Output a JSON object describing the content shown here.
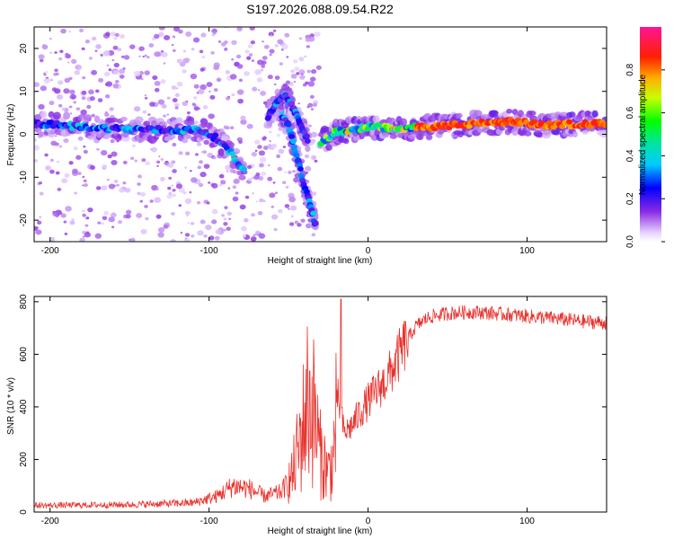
{
  "title": "S197.2026.088.09.54.R22",
  "chart_data": [
    {
      "type": "heatmap",
      "xlabel": "Height of straight line (km)",
      "ylabel": "Frequency (Hz)",
      "xlim": [
        -210,
        150
      ],
      "ylim": [
        -25,
        25
      ],
      "xticks": [
        -200,
        -100,
        0,
        100
      ],
      "yticks": [
        -20,
        -10,
        0,
        10,
        20
      ],
      "xtick_labels": [
        "-200",
        "-100",
        "0",
        "100"
      ],
      "ytick_labels": [
        "-20",
        "-10",
        "0",
        "10",
        "20"
      ],
      "colorbar": {
        "label": "Normalized spectral amplitude",
        "range": [
          0,
          1
        ],
        "ticks": [
          0.0,
          0.2,
          0.4,
          0.6,
          0.8
        ],
        "tick_labels": [
          "0.0",
          "0.2",
          "0.4",
          "0.6",
          "0.8"
        ]
      },
      "ridges": [
        {
          "name": "main band (left)",
          "points": [
            [
              -210,
              2.5
            ],
            [
              -170,
              1.5
            ],
            [
              -130,
              1.0
            ],
            [
              -105,
              1.0
            ],
            [
              -95,
              -1.0
            ],
            [
              -85,
              -5.0
            ],
            [
              -77,
              -9.0
            ]
          ]
        },
        {
          "name": "main band (right)",
          "points": [
            [
              -30,
              -2.0
            ],
            [
              -20,
              0.5
            ],
            [
              -10,
              1.0
            ],
            [
              0,
              1.8
            ],
            [
              20,
              1.2
            ],
            [
              40,
              1.8
            ],
            [
              70,
              2.5
            ],
            [
              90,
              3.0
            ],
            [
              110,
              2.2
            ],
            [
              150,
              2.5
            ]
          ]
        },
        {
          "name": "descending branch",
          "points": [
            [
              -55,
              5.0
            ],
            [
              -50,
              2.0
            ],
            [
              -45,
              -5.0
            ],
            [
              -40,
              -12.0
            ],
            [
              -36,
              -17.0
            ],
            [
              -33,
              -21.0
            ]
          ]
        },
        {
          "name": "upper branch",
          "points": [
            [
              -63,
              4.0
            ],
            [
              -58,
              7.0
            ],
            [
              -52,
              9.0
            ],
            [
              -47,
              6.0
            ],
            [
              -42,
              2.0
            ],
            [
              -38,
              -1.0
            ]
          ]
        }
      ]
    },
    {
      "type": "line",
      "xlabel": "Height of straight line (km)",
      "ylabel": "SNR (10 * v/v)",
      "xlim": [
        -210,
        150
      ],
      "ylim": [
        0,
        820
      ],
      "xticks": [
        -200,
        -100,
        0,
        100
      ],
      "yticks": [
        0,
        200,
        400,
        600,
        800
      ],
      "xtick_labels": [
        "-200",
        "-100",
        "0",
        "100"
      ],
      "ytick_labels": [
        "0",
        "200",
        "400",
        "600",
        "800"
      ],
      "series": [
        {
          "name": "SNR",
          "color": "#e8322d",
          "envelope": [
            [
              -210,
              25
            ],
            [
              -150,
              28
            ],
            [
              -110,
              35
            ],
            [
              -95,
              60
            ],
            [
              -85,
              100
            ],
            [
              -75,
              90
            ],
            [
              -65,
              60
            ],
            [
              -55,
              75
            ],
            [
              -48,
              130
            ],
            [
              -42,
              290
            ],
            [
              -38,
              430
            ],
            [
              -34,
              380
            ],
            [
              -30,
              220
            ],
            [
              -25,
              150
            ],
            [
              -22,
              200
            ],
            [
              -19,
              440
            ],
            [
              -15,
              300
            ],
            [
              -10,
              330
            ],
            [
              -5,
              380
            ],
            [
              0,
              420
            ],
            [
              5,
              460
            ],
            [
              10,
              490
            ],
            [
              15,
              540
            ],
            [
              20,
              600
            ],
            [
              25,
              660
            ],
            [
              30,
              705
            ],
            [
              35,
              730
            ],
            [
              40,
              745
            ],
            [
              50,
              755
            ],
            [
              60,
              760
            ],
            [
              70,
              760
            ],
            [
              80,
              755
            ],
            [
              90,
              750
            ],
            [
              100,
              745
            ],
            [
              110,
              740
            ],
            [
              120,
              735
            ],
            [
              135,
              725
            ],
            [
              150,
              720
            ]
          ]
        }
      ]
    }
  ]
}
